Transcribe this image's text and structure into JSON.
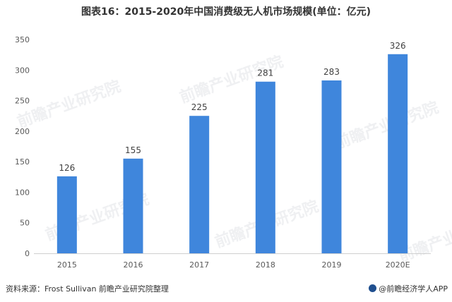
{
  "chart_data": {
    "type": "bar",
    "title": "图表16：2015-2020年中国消费级无人机市场规模(单位：亿元)",
    "categories": [
      "2015",
      "2016",
      "2017",
      "2018",
      "2019",
      "2020E"
    ],
    "values": [
      126,
      155,
      225,
      281,
      283,
      326
    ],
    "xlabel": "",
    "ylabel": "",
    "ylim": [
      0,
      350
    ],
    "yticks": [
      0,
      50,
      100,
      150,
      200,
      250,
      300,
      350
    ],
    "grid": false,
    "legend": "none",
    "bar_color": "#3f86dc"
  },
  "footer": {
    "source": "资料来源：Frost Sullivan 前瞻产业研究院整理",
    "brand": "@前瞻经济学人APP"
  },
  "watermark_text": "前瞻产业研究院"
}
